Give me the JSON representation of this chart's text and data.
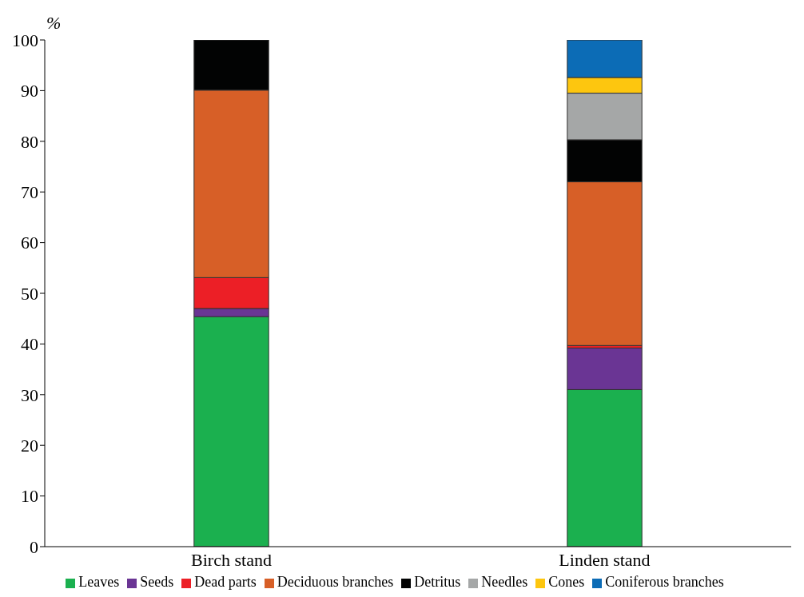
{
  "chart_data": {
    "type": "bar",
    "stacked": true,
    "ylabel": "%",
    "categories": [
      "Birch stand",
      "Linden stand"
    ],
    "series": [
      {
        "name": "Leaves",
        "color": "#1bb04f",
        "values": [
          45.4,
          31.0
        ]
      },
      {
        "name": "Seeds",
        "color": "#6a3594",
        "values": [
          1.6,
          8.2
        ]
      },
      {
        "name": "Dead parts",
        "color": "#ec1f26",
        "values": [
          6.1,
          0.5
        ]
      },
      {
        "name": "Deciduous branches",
        "color": "#d75f27",
        "values": [
          37.0,
          32.3
        ]
      },
      {
        "name": "Detritus",
        "color": "#020303",
        "values": [
          9.9,
          8.3
        ]
      },
      {
        "name": "Needles",
        "color": "#a5a7a7",
        "values": [
          null,
          9.2
        ]
      },
      {
        "name": "Cones",
        "color": "#fdc60f",
        "values": [
          null,
          3.1
        ]
      },
      {
        "name": "Coniferous branches",
        "color": "#0c6cb6",
        "values": [
          null,
          7.4
        ]
      }
    ],
    "ylim": [
      0,
      100
    ],
    "yticks": [
      0,
      10,
      20,
      30,
      40,
      50,
      60,
      70,
      80,
      90,
      100
    ],
    "grid": false,
    "legend": "bottom"
  }
}
